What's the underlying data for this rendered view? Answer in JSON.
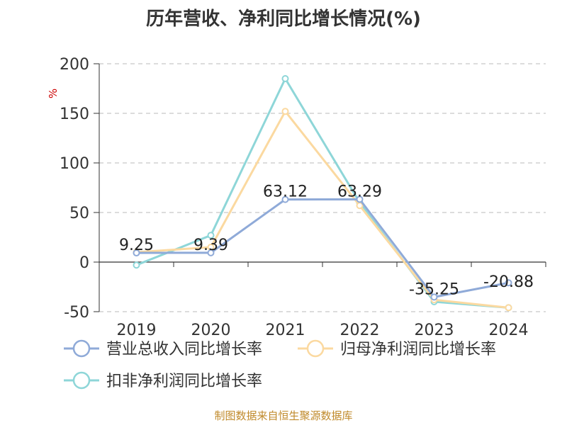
{
  "chart_data": {
    "type": "line",
    "title": "历年营收、净利同比增长情况(%)",
    "ylabel": "%",
    "categories": [
      "2019",
      "2020",
      "2021",
      "2022",
      "2023",
      "2024"
    ],
    "ylim": [
      -50,
      200
    ],
    "yticks": [
      200,
      150,
      100,
      50,
      0,
      -50
    ],
    "grid": true,
    "legend_position": "bottom",
    "series": [
      {
        "name": "营业总收入同比增长率",
        "color": "#8faad8",
        "values": [
          9.25,
          9.39,
          63.12,
          63.29,
          -35.25,
          -20.88
        ],
        "labeled": true
      },
      {
        "name": "归母净利润同比增长率",
        "color": "#fbd9a0",
        "values": [
          10,
          15,
          152,
          57,
          -38,
          -46
        ],
        "labeled": false
      },
      {
        "name": "扣非净利润同比增长率",
        "color": "#8ed6d8",
        "values": [
          -3,
          27,
          185,
          60,
          -40,
          -46
        ],
        "labeled": false
      }
    ],
    "data_labels": [
      "9.25",
      "9.39",
      "63.12",
      "63.29",
      "-35.25",
      "-20.88"
    ]
  },
  "source": "制图数据来自恒生聚源数据库"
}
